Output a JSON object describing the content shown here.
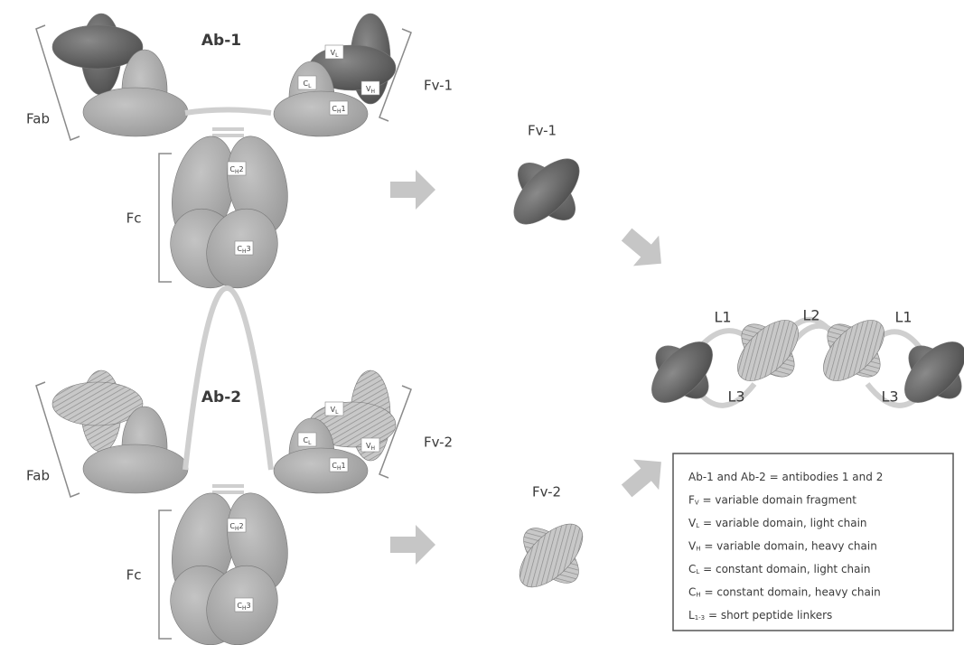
{
  "antibodies": [
    {
      "name": "Ab-1",
      "fab": "Fab",
      "fv": "Fv-1",
      "fc": "Fc",
      "domains": [
        {
          "letter": "V",
          "sub": "L"
        },
        {
          "letter": "V",
          "sub": "H"
        },
        {
          "letter": "C",
          "sub": "L"
        },
        {
          "letter": "C",
          "sub": "H",
          "num": "1"
        },
        {
          "letter": "C",
          "sub": "H",
          "num": "2"
        },
        {
          "letter": "C",
          "sub": "H",
          "num": "3"
        }
      ]
    },
    {
      "name": "Ab-2",
      "fab": "Fab",
      "fv": "Fv-2",
      "fc": "Fc",
      "domains": [
        {
          "letter": "V",
          "sub": "L"
        },
        {
          "letter": "V",
          "sub": "H"
        },
        {
          "letter": "C",
          "sub": "L"
        },
        {
          "letter": "C",
          "sub": "H",
          "num": "1"
        },
        {
          "letter": "C",
          "sub": "H",
          "num": "2"
        },
        {
          "letter": "C",
          "sub": "H",
          "num": "3"
        }
      ]
    }
  ],
  "fragments": [
    "Fv-1",
    "Fv-2"
  ],
  "linkers": [
    "L1",
    "L2",
    "L1",
    "L3",
    "L3"
  ],
  "legend": [
    {
      "term": "Ab-1 and Ab-2",
      "definition": "= antibodies 1 and 2"
    },
    {
      "term": "F",
      "sub": "V",
      "definition": "= variable domain fragment"
    },
    {
      "term": "V",
      "sub": "L",
      "definition": "= variable domain, light chain"
    },
    {
      "term": "V",
      "sub": "H",
      "definition": "= variable domain, heavy chain"
    },
    {
      "term": "C",
      "sub": "L",
      "definition": "= constant domain, light chain"
    },
    {
      "term": "C",
      "sub": "H",
      "definition": "= constant domain, heavy chain"
    },
    {
      "term": "L",
      "sub": "1-3",
      "definition": "= short peptide linkers"
    }
  ]
}
